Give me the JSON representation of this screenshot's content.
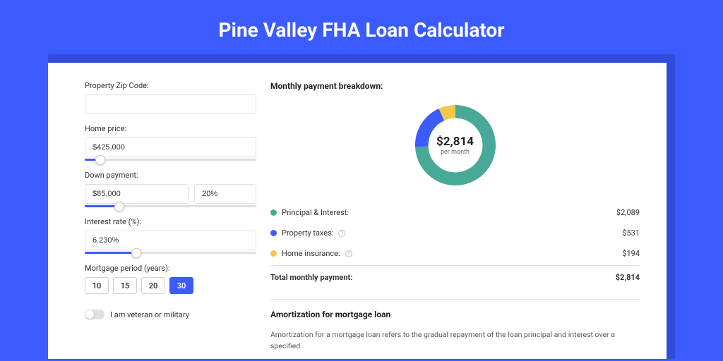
{
  "page": {
    "title": "Pine Valley FHA Loan Calculator",
    "bg_color": "#3b5bff",
    "accent_color": "#304dd9"
  },
  "form": {
    "zip": {
      "label": "Property Zip Code:",
      "value": ""
    },
    "price": {
      "label": "Home price:",
      "value": "$425,000",
      "slider_pct": 9
    },
    "down": {
      "label": "Down payment:",
      "value": "$85,000",
      "pct": "20%",
      "slider_pct": 20
    },
    "rate": {
      "label": "Interest rate (%):",
      "value": "6.230%",
      "slider_pct": 30
    },
    "period": {
      "label": "Mortgage period (years):",
      "options": [
        "10",
        "15",
        "20",
        "30"
      ],
      "active": "30"
    },
    "veteran": {
      "label": "I am veteran or military",
      "on": false
    }
  },
  "breakdown": {
    "title": "Monthly payment breakdown:",
    "donut": {
      "amount": "$2,814",
      "sub": "per month",
      "slices": [
        {
          "key": "pi",
          "value": 2089,
          "pct": 74.2,
          "color": "#48a999"
        },
        {
          "key": "tax",
          "value": 531,
          "pct": 18.9,
          "color": "#3b5bff"
        },
        {
          "key": "ins",
          "value": 194,
          "pct": 6.9,
          "color": "#f0c94a"
        }
      ],
      "thickness": 18
    },
    "rows": [
      {
        "label": "Principal & Interest:",
        "amount": "$2,089",
        "color": "#48a999",
        "info": false
      },
      {
        "label": "Property taxes:",
        "amount": "$531",
        "color": "#3b5bff",
        "info": true
      },
      {
        "label": "Home insurance:",
        "amount": "$194",
        "color": "#f0c94a",
        "info": true
      }
    ],
    "total": {
      "label": "Total monthly payment:",
      "amount": "$2,814"
    }
  },
  "amort": {
    "title": "Amortization for mortgage loan",
    "text": "Amortization for a mortgage loan refers to the gradual repayment of the loan principal and interest over a specified"
  }
}
